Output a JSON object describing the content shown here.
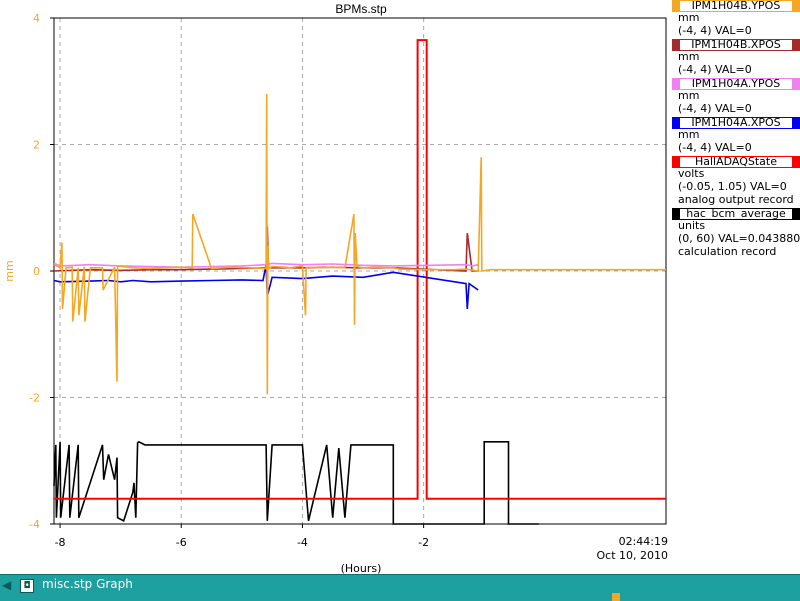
{
  "chart_data": {
    "type": "line",
    "title": "BPMs.stp",
    "xlabel": "(Hours)",
    "ylabel": "mm",
    "xlim": [
      -8.1,
      2.0
    ],
    "ylim": [
      -4,
      4
    ],
    "xticks": [
      -8,
      -6,
      -4,
      -2
    ],
    "yticks": [
      -4,
      -2,
      0,
      2,
      4
    ],
    "end_time": "02:44:19",
    "end_date": "Oct 10, 2010",
    "grid": true,
    "series": [
      {
        "name": "IPM1H04B.YPOS",
        "color": "#f5a623",
        "units": "mm",
        "range": "(-4, 4) VAL=0",
        "x": [
          -8.1,
          -8.0,
          -7.97,
          -7.96,
          -7.9,
          -7.8,
          -7.79,
          -7.7,
          -7.69,
          -7.6,
          -7.59,
          -7.5,
          -7.3,
          -7.29,
          -7.1,
          -7.06,
          -7.05,
          -6.8,
          -6.5,
          -6.3,
          -6.0,
          -5.82,
          -5.81,
          -5.5,
          -5.2,
          -4.9,
          -4.6,
          -4.59,
          -4.58,
          -4.57,
          -4.56,
          -4.5,
          -4.3,
          -4.2,
          -4.0,
          -3.95,
          -3.94,
          -3.9,
          -3.7,
          -3.5,
          -3.3,
          -3.15,
          -3.14,
          -3.13,
          -3.1,
          -3.0,
          -2.8,
          -2.5,
          -2.4,
          -2.0,
          -1.5,
          -1.3,
          -1.1,
          -1.05,
          -1.04,
          -0.9,
          -0.5,
          0.0,
          0.5,
          1.0,
          1.5,
          2.0
        ],
        "y": [
          0.1,
          0.05,
          0.45,
          -0.6,
          0.05,
          0.06,
          -0.8,
          0.05,
          -0.7,
          0.07,
          -0.8,
          0.05,
          0.05,
          -0.3,
          0.06,
          -1.75,
          0.08,
          0.05,
          0.04,
          0.05,
          0.06,
          0.05,
          0.9,
          0.04,
          0.06,
          0.05,
          0.04,
          2.8,
          -1.95,
          0.4,
          0.04,
          0.07,
          0.06,
          0.05,
          0.08,
          -0.7,
          0.05,
          0.06,
          0.05,
          0.06,
          0.05,
          0.9,
          -0.85,
          0.6,
          0.07,
          0.05,
          0.06,
          0.05,
          0.03,
          0.02,
          0.02,
          0.03,
          0.0,
          1.8,
          0.0,
          0.02,
          0.02,
          0.02,
          0.02,
          0.02,
          0.02,
          0.02
        ]
      },
      {
        "name": "IPM1H04B.XPOS",
        "color": "#a52a2a",
        "units": "mm",
        "range": "(-4, 4) VAL=0",
        "x": [
          -8.1,
          -7.5,
          -7.0,
          -6.5,
          -6.0,
          -5.5,
          -5.0,
          -4.6,
          -4.58,
          -4.56,
          -4.0,
          -3.5,
          -3.1,
          -2.5,
          -1.3,
          -1.28,
          -1.2,
          -1.1
        ],
        "y": [
          0.0,
          0.02,
          0.01,
          0.02,
          0.02,
          0.03,
          0.04,
          0.05,
          0.7,
          0.05,
          0.05,
          0.06,
          0.05,
          0.05,
          0.0,
          0.6,
          0.0,
          0.0
        ]
      },
      {
        "name": "IPM1H04A.YPOS",
        "color": "#ee82ee",
        "units": "mm",
        "range": "(-4, 4) VAL=0",
        "x": [
          -8.1,
          -8.0,
          -7.5,
          -7.0,
          -6.5,
          -6.0,
          -5.5,
          -5.0,
          -4.6,
          -4.5,
          -4.0,
          -3.5,
          -3.0,
          -2.5,
          -1.3,
          -1.2,
          -1.1
        ],
        "y": [
          0.12,
          0.08,
          0.1,
          0.08,
          0.07,
          0.06,
          0.07,
          0.08,
          0.1,
          0.12,
          0.1,
          0.11,
          0.09,
          0.08,
          0.1,
          0.08,
          0.1
        ]
      },
      {
        "name": "IPM1H04A.XPOS",
        "color": "#0000ee",
        "units": "mm",
        "range": "(-4, 4) VAL=0",
        "x": [
          -8.1,
          -8.0,
          -7.5,
          -7.2,
          -7.0,
          -6.8,
          -6.5,
          -6.0,
          -5.5,
          -5.0,
          -4.65,
          -4.6,
          -4.58,
          -4.5,
          -4.0,
          -3.5,
          -3.0,
          -2.5,
          -1.3,
          -1.28,
          -1.25,
          -1.1
        ],
        "y": [
          -0.15,
          -0.17,
          -0.16,
          -0.15,
          -0.17,
          -0.15,
          -0.17,
          -0.16,
          -0.15,
          -0.14,
          -0.15,
          0.1,
          -0.4,
          -0.1,
          -0.12,
          -0.08,
          -0.1,
          -0.02,
          -0.2,
          -0.6,
          -0.2,
          -0.3
        ]
      },
      {
        "name": "HallADAQState",
        "color": "#ff0000",
        "units": "volts",
        "range": "(-0.05, 1.05) VAL=0",
        "extra": "analog output record",
        "x": [
          -8.1,
          -2.1,
          -2.1,
          -1.95,
          -1.95,
          2.0
        ],
        "y": [
          -3.6,
          -3.6,
          3.65,
          3.65,
          -3.6,
          -3.6
        ]
      },
      {
        "name": "hac_bcm_average",
        "color": "#000000",
        "units": "units",
        "range": "(0, 60) VAL=0.043880",
        "extra": "calculation record",
        "x": [
          -8.1,
          -8.07,
          -8.06,
          -8.0,
          -7.99,
          -7.85,
          -7.84,
          -7.7,
          -7.69,
          -7.3,
          -7.28,
          -7.2,
          -7.1,
          -7.06,
          -7.05,
          -6.95,
          -6.8,
          -6.78,
          -6.75,
          -6.72,
          -6.7,
          -6.6,
          -6.1,
          -5.8,
          -5.5,
          -5.0,
          -4.6,
          -4.58,
          -4.5,
          -4.0,
          -3.9,
          -3.6,
          -3.5,
          -3.4,
          -3.3,
          -3.2,
          -3.0,
          -2.9,
          -2.5,
          -2.5,
          -1.0,
          -1.0,
          -0.6,
          -0.6,
          -0.1
        ],
        "y": [
          -3.4,
          -2.75,
          -3.9,
          -2.7,
          -3.9,
          -2.75,
          -3.9,
          -2.75,
          -3.9,
          -2.75,
          -3.3,
          -2.9,
          -3.3,
          -2.95,
          -3.9,
          -3.95,
          -3.5,
          -3.35,
          -3.9,
          -2.72,
          -2.7,
          -2.75,
          -2.75,
          -2.75,
          -2.75,
          -2.75,
          -2.75,
          -3.95,
          -2.75,
          -2.75,
          -3.95,
          -2.75,
          -3.9,
          -2.8,
          -3.9,
          -2.75,
          -2.75,
          -2.75,
          -2.75,
          -4.0,
          -4.0,
          -2.7,
          -2.7,
          -4.0,
          -4.0
        ]
      }
    ]
  },
  "taskbar": {
    "title": "misc.stp Graph",
    "icon_name": "window-icon",
    "arrow_glyph": "◀",
    "icon_glyph": "◘"
  }
}
